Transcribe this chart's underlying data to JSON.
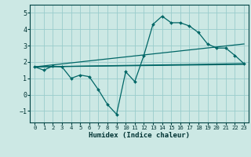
{
  "xlabel": "Humidex (Indice chaleur)",
  "background_color": "#cce8e4",
  "grid_color": "#99cccc",
  "line_color": "#006666",
  "xlim": [
    -0.5,
    23.5
  ],
  "ylim": [
    -1.7,
    5.5
  ],
  "xticks": [
    0,
    1,
    2,
    3,
    4,
    5,
    6,
    7,
    8,
    9,
    10,
    11,
    12,
    13,
    14,
    15,
    16,
    17,
    18,
    19,
    20,
    21,
    22,
    23
  ],
  "yticks": [
    -1,
    0,
    1,
    2,
    3,
    4,
    5
  ],
  "main_curve_x": [
    0,
    1,
    2,
    3,
    4,
    5,
    6,
    7,
    8,
    9,
    10,
    11,
    12,
    13,
    14,
    15,
    16,
    17,
    18,
    19,
    20,
    21,
    22,
    23
  ],
  "main_curve_y": [
    1.7,
    1.5,
    1.75,
    1.7,
    1.0,
    1.2,
    1.1,
    0.3,
    -0.6,
    -1.2,
    1.4,
    0.8,
    2.4,
    4.3,
    4.8,
    4.4,
    4.4,
    4.2,
    3.8,
    3.1,
    2.85,
    2.85,
    2.4,
    1.9
  ],
  "line1_x": [
    0,
    23
  ],
  "line1_y": [
    1.7,
    1.85
  ],
  "line2_x": [
    0,
    23
  ],
  "line2_y": [
    1.7,
    3.1
  ],
  "line3_x": [
    0,
    23
  ],
  "line3_y": [
    1.7,
    1.9
  ]
}
